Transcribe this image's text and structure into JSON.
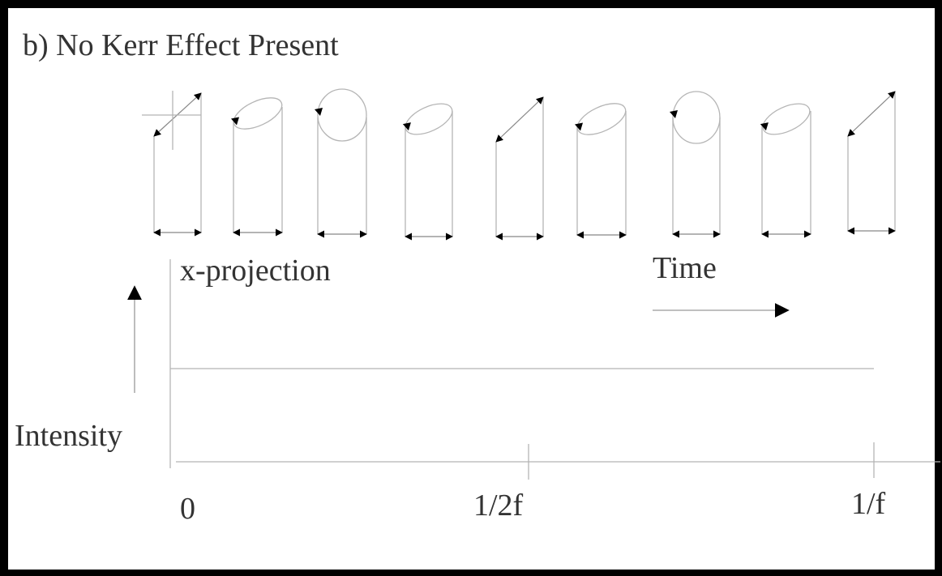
{
  "title": "b) No Kerr Effect Present",
  "labels": {
    "x_projection": "x-projection",
    "time": "Time",
    "intensity": "Intensity"
  },
  "axis": {
    "ticks": [
      "0",
      "1/2f",
      "1/f"
    ]
  }
}
